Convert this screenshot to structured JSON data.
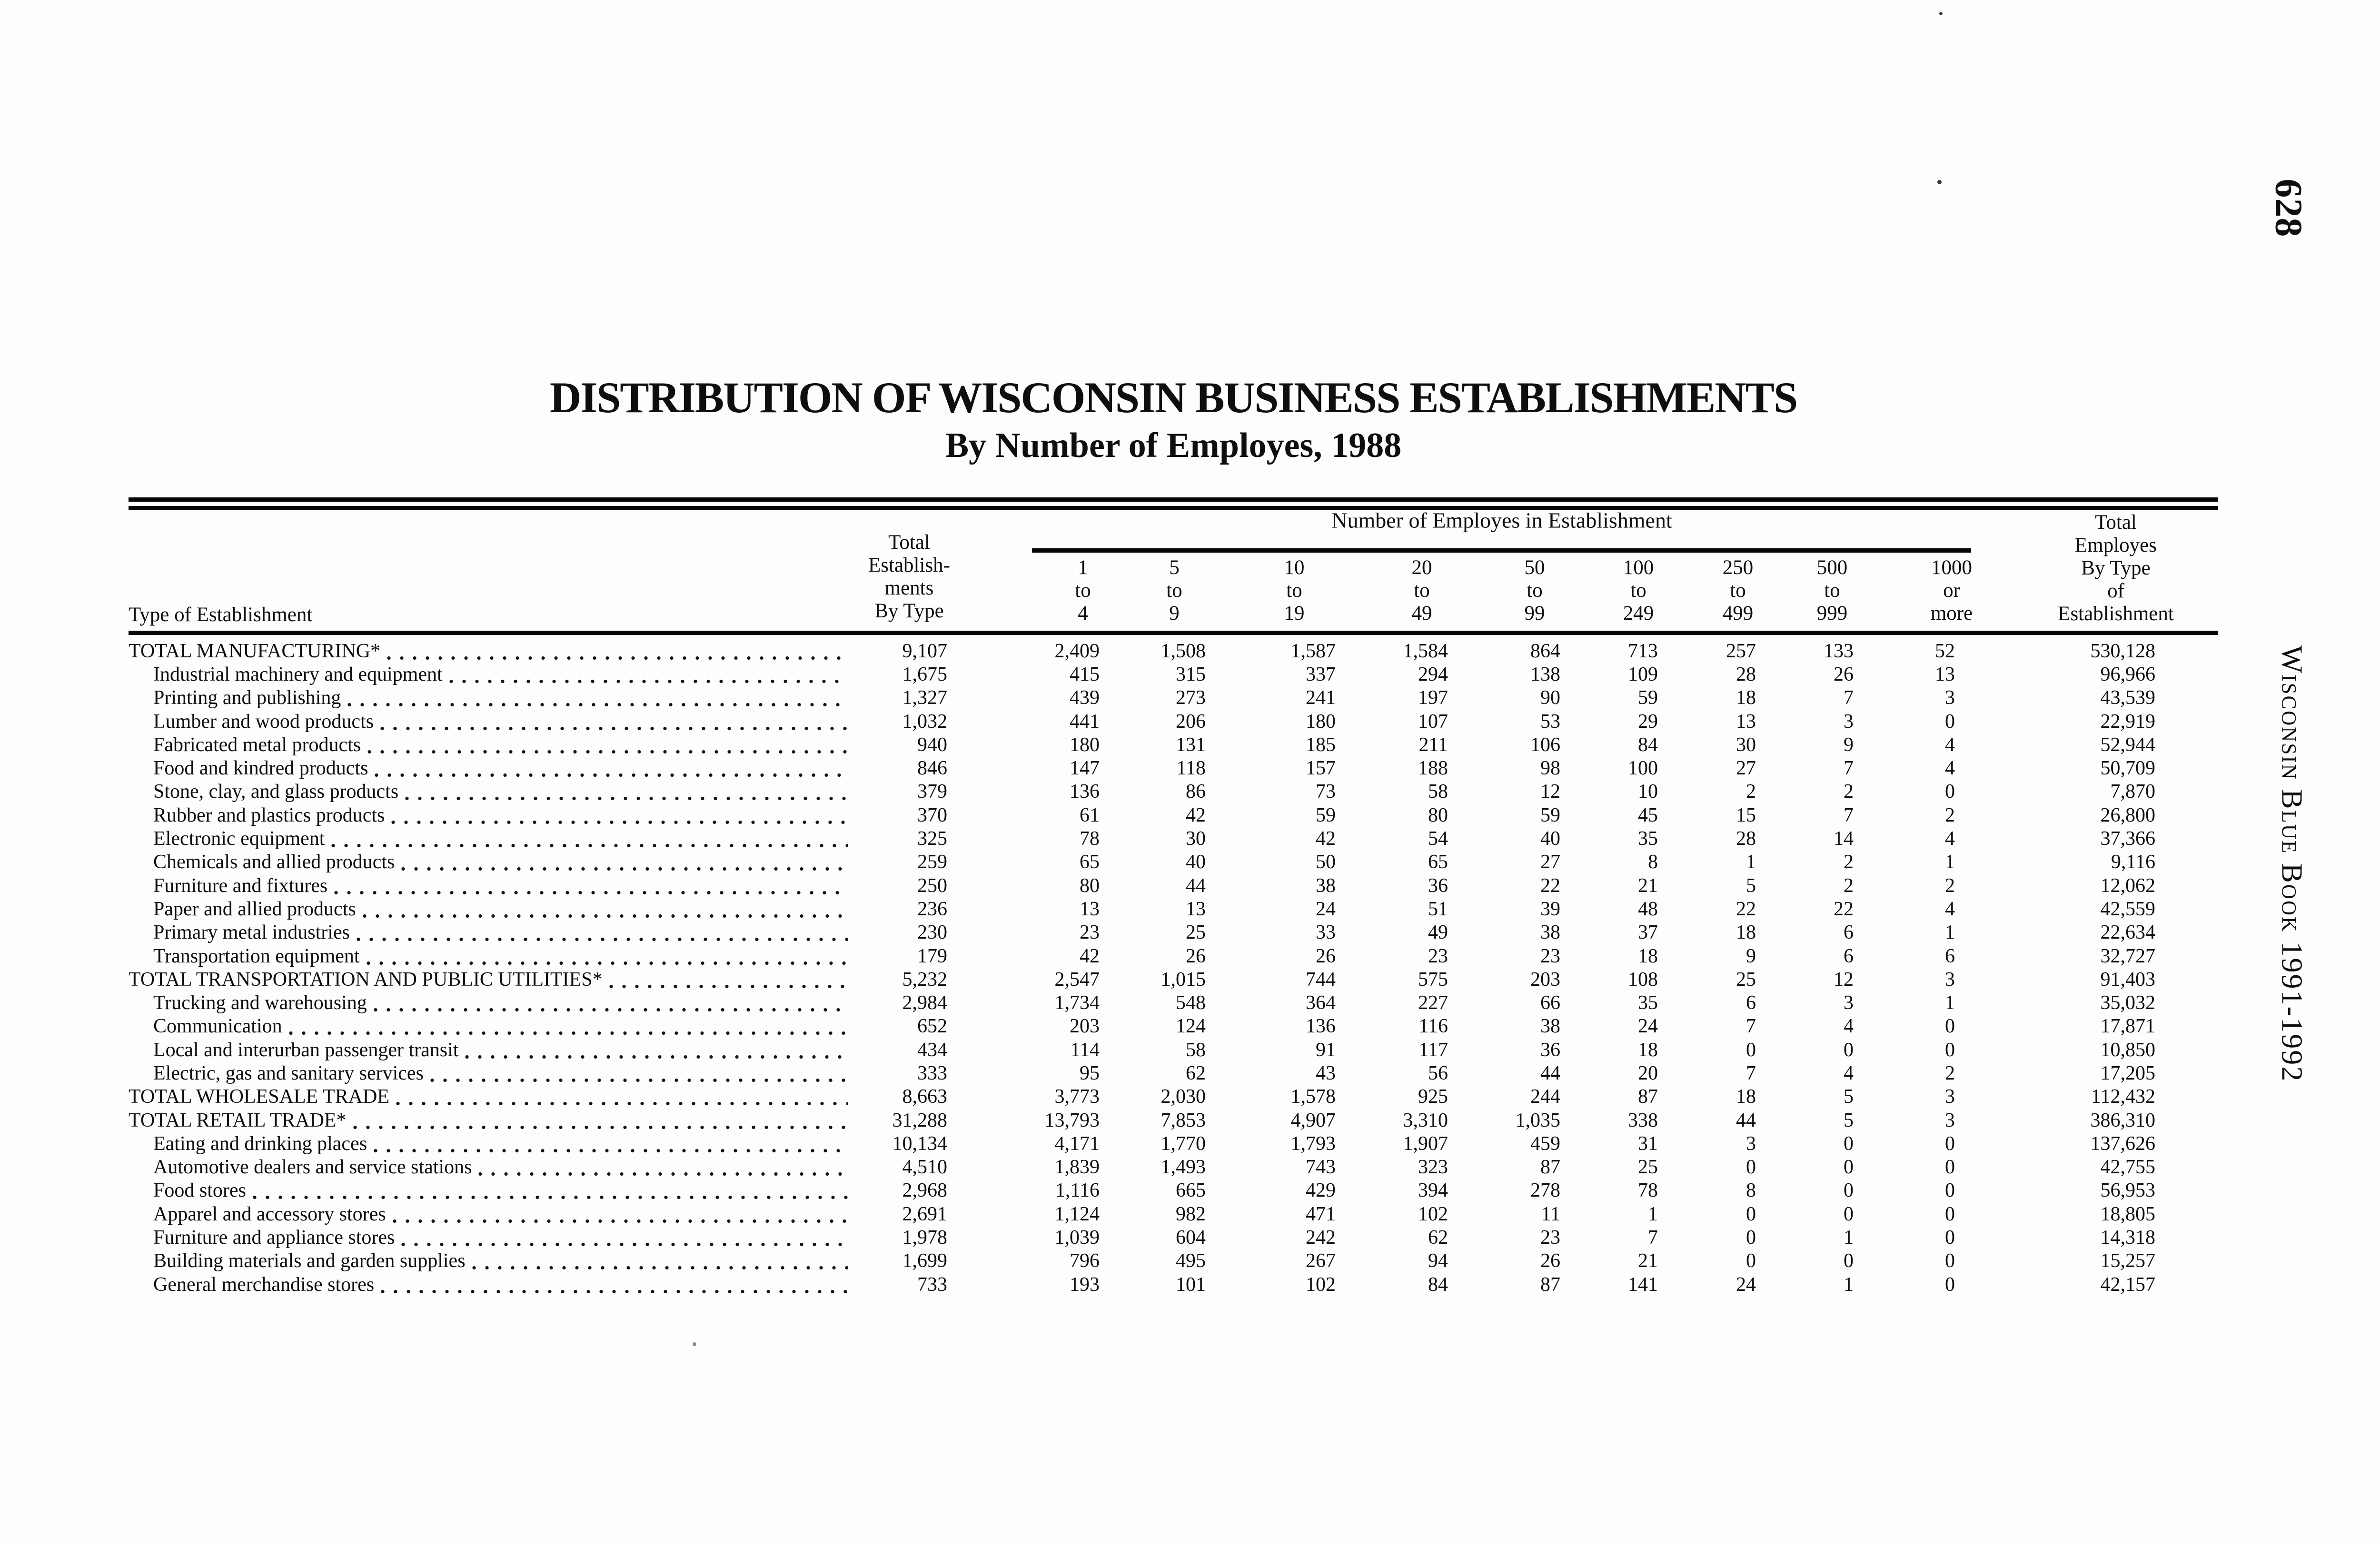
{
  "page": {
    "number": "628",
    "side_label": "Wisconsin Blue Book 1991-1992"
  },
  "title": {
    "line1": "DISTRIBUTION OF WISCONSIN BUSINESS ESTABLISHMENTS",
    "line2": "By Number of Employes, 1988"
  },
  "table": {
    "col_group_header": "Number of Employes in Establishment",
    "row_header": "Type of Establishment",
    "first_col_header_lines": [
      "Total",
      "Establish-",
      "ments",
      "By Type"
    ],
    "employee_cols": [
      [
        "1",
        "to",
        "4"
      ],
      [
        "5",
        "to",
        "9"
      ],
      [
        "10",
        "to",
        "19"
      ],
      [
        "20",
        "to",
        "49"
      ],
      [
        "50",
        "to",
        "99"
      ],
      [
        "100",
        "to",
        "249"
      ],
      [
        "250",
        "to",
        "499"
      ],
      [
        "500",
        "to",
        "999"
      ],
      [
        "1000",
        "or",
        "more"
      ]
    ],
    "last_col_header_lines": [
      "Total",
      "Employes",
      "By Type",
      "of",
      "Establishment"
    ],
    "rows": [
      {
        "label": "TOTAL MANUFACTURING*",
        "bold": true,
        "indent": false,
        "values": [
          "9,107",
          "2,409",
          "1,508",
          "1,587",
          "1,584",
          "864",
          "713",
          "257",
          "133",
          "52",
          "530,128"
        ]
      },
      {
        "label": "Industrial machinery and equipment",
        "bold": false,
        "indent": true,
        "values": [
          "1,675",
          "415",
          "315",
          "337",
          "294",
          "138",
          "109",
          "28",
          "26",
          "13",
          "96,966"
        ]
      },
      {
        "label": "Printing and publishing",
        "bold": false,
        "indent": true,
        "values": [
          "1,327",
          "439",
          "273",
          "241",
          "197",
          "90",
          "59",
          "18",
          "7",
          "3",
          "43,539"
        ]
      },
      {
        "label": "Lumber and wood products",
        "bold": false,
        "indent": true,
        "values": [
          "1,032",
          "441",
          "206",
          "180",
          "107",
          "53",
          "29",
          "13",
          "3",
          "0",
          "22,919"
        ]
      },
      {
        "label": "Fabricated metal products",
        "bold": false,
        "indent": true,
        "values": [
          "940",
          "180",
          "131",
          "185",
          "211",
          "106",
          "84",
          "30",
          "9",
          "4",
          "52,944"
        ]
      },
      {
        "label": "Food and kindred products",
        "bold": false,
        "indent": true,
        "values": [
          "846",
          "147",
          "118",
          "157",
          "188",
          "98",
          "100",
          "27",
          "7",
          "4",
          "50,709"
        ]
      },
      {
        "label": "Stone, clay, and glass products",
        "bold": false,
        "indent": true,
        "values": [
          "379",
          "136",
          "86",
          "73",
          "58",
          "12",
          "10",
          "2",
          "2",
          "0",
          "7,870"
        ]
      },
      {
        "label": "Rubber and plastics products",
        "bold": false,
        "indent": true,
        "values": [
          "370",
          "61",
          "42",
          "59",
          "80",
          "59",
          "45",
          "15",
          "7",
          "2",
          "26,800"
        ]
      },
      {
        "label": "Electronic equipment",
        "bold": false,
        "indent": true,
        "values": [
          "325",
          "78",
          "30",
          "42",
          "54",
          "40",
          "35",
          "28",
          "14",
          "4",
          "37,366"
        ]
      },
      {
        "label": "Chemicals and allied products",
        "bold": false,
        "indent": true,
        "values": [
          "259",
          "65",
          "40",
          "50",
          "65",
          "27",
          "8",
          "1",
          "2",
          "1",
          "9,116"
        ]
      },
      {
        "label": "Furniture and fixtures",
        "bold": false,
        "indent": true,
        "values": [
          "250",
          "80",
          "44",
          "38",
          "36",
          "22",
          "21",
          "5",
          "2",
          "2",
          "12,062"
        ]
      },
      {
        "label": "Paper and allied products",
        "bold": false,
        "indent": true,
        "values": [
          "236",
          "13",
          "13",
          "24",
          "51",
          "39",
          "48",
          "22",
          "22",
          "4",
          "42,559"
        ]
      },
      {
        "label": "Primary metal industries",
        "bold": false,
        "indent": true,
        "values": [
          "230",
          "23",
          "25",
          "33",
          "49",
          "38",
          "37",
          "18",
          "6",
          "1",
          "22,634"
        ]
      },
      {
        "label": "Transportation equipment",
        "bold": false,
        "indent": true,
        "values": [
          "179",
          "42",
          "26",
          "26",
          "23",
          "23",
          "18",
          "9",
          "6",
          "6",
          "32,727"
        ]
      },
      {
        "label": "TOTAL TRANSPORTATION AND PUBLIC UTILITIES*",
        "bold": true,
        "indent": false,
        "values": [
          "5,232",
          "2,547",
          "1,015",
          "744",
          "575",
          "203",
          "108",
          "25",
          "12",
          "3",
          "91,403"
        ]
      },
      {
        "label": "Trucking and warehousing",
        "bold": false,
        "indent": true,
        "values": [
          "2,984",
          "1,734",
          "548",
          "364",
          "227",
          "66",
          "35",
          "6",
          "3",
          "1",
          "35,032"
        ]
      },
      {
        "label": "Communication",
        "bold": false,
        "indent": true,
        "values": [
          "652",
          "203",
          "124",
          "136",
          "116",
          "38",
          "24",
          "7",
          "4",
          "0",
          "17,871"
        ]
      },
      {
        "label": "Local and interurban passenger transit",
        "bold": false,
        "indent": true,
        "values": [
          "434",
          "114",
          "58",
          "91",
          "117",
          "36",
          "18",
          "0",
          "0",
          "0",
          "10,850"
        ]
      },
      {
        "label": "Electric, gas and sanitary services",
        "bold": false,
        "indent": true,
        "values": [
          "333",
          "95",
          "62",
          "43",
          "56",
          "44",
          "20",
          "7",
          "4",
          "2",
          "17,205"
        ]
      },
      {
        "label": "TOTAL WHOLESALE TRADE",
        "bold": true,
        "indent": false,
        "values": [
          "8,663",
          "3,773",
          "2,030",
          "1,578",
          "925",
          "244",
          "87",
          "18",
          "5",
          "3",
          "112,432"
        ]
      },
      {
        "label": "TOTAL RETAIL TRADE*",
        "bold": true,
        "indent": false,
        "values": [
          "31,288",
          "13,793",
          "7,853",
          "4,907",
          "3,310",
          "1,035",
          "338",
          "44",
          "5",
          "3",
          "386,310"
        ]
      },
      {
        "label": "Eating and drinking places",
        "bold": false,
        "indent": true,
        "values": [
          "10,134",
          "4,171",
          "1,770",
          "1,793",
          "1,907",
          "459",
          "31",
          "3",
          "0",
          "0",
          "137,626"
        ]
      },
      {
        "label": "Automotive dealers and service stations",
        "bold": false,
        "indent": true,
        "values": [
          "4,510",
          "1,839",
          "1,493",
          "743",
          "323",
          "87",
          "25",
          "0",
          "0",
          "0",
          "42,755"
        ]
      },
      {
        "label": "Food stores",
        "bold": false,
        "indent": true,
        "values": [
          "2,968",
          "1,116",
          "665",
          "429",
          "394",
          "278",
          "78",
          "8",
          "0",
          "0",
          "56,953"
        ]
      },
      {
        "label": "Apparel and accessory stores",
        "bold": false,
        "indent": true,
        "values": [
          "2,691",
          "1,124",
          "982",
          "471",
          "102",
          "11",
          "1",
          "0",
          "0",
          "0",
          "18,805"
        ]
      },
      {
        "label": "Furniture and appliance stores",
        "bold": false,
        "indent": true,
        "values": [
          "1,978",
          "1,039",
          "604",
          "242",
          "62",
          "23",
          "7",
          "0",
          "1",
          "0",
          "14,318"
        ]
      },
      {
        "label": "Building materials and garden supplies",
        "bold": false,
        "indent": true,
        "values": [
          "1,699",
          "796",
          "495",
          "267",
          "94",
          "26",
          "21",
          "0",
          "0",
          "0",
          "15,257"
        ]
      },
      {
        "label": "General merchandise stores",
        "bold": false,
        "indent": true,
        "values": [
          "733",
          "193",
          "101",
          "102",
          "84",
          "87",
          "141",
          "24",
          "1",
          "0",
          "42,157"
        ]
      }
    ]
  }
}
